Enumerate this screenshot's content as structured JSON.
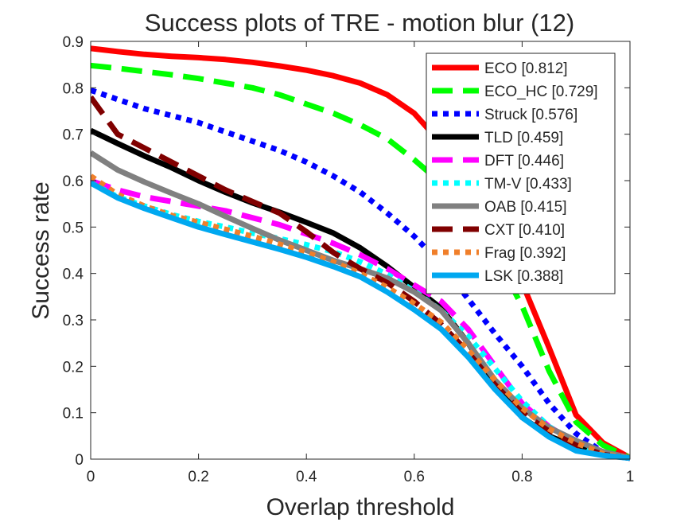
{
  "chart_data": {
    "type": "line",
    "title": "Success plots of TRE - motion blur (12)",
    "xlabel": "Overlap threshold",
    "ylabel": "Success rate",
    "xlim": [
      0,
      1
    ],
    "ylim": [
      0,
      0.9
    ],
    "xticks": [
      "0",
      "0.2",
      "0.4",
      "0.6",
      "0.8",
      "1"
    ],
    "yticks": [
      "0",
      "0.1",
      "0.2",
      "0.3",
      "0.4",
      "0.5",
      "0.6",
      "0.7",
      "0.8",
      "0.9"
    ],
    "grid": false,
    "legend_position": "top-right",
    "x": [
      0,
      0.05,
      0.1,
      0.15,
      0.2,
      0.25,
      0.3,
      0.35,
      0.4,
      0.45,
      0.5,
      0.55,
      0.6,
      0.65,
      0.7,
      0.75,
      0.8,
      0.85,
      0.9,
      0.95,
      1.0
    ],
    "series": [
      {
        "name": "ECO [0.812]",
        "color": "#ff0000",
        "dash": "solid",
        "values": [
          0.885,
          0.878,
          0.872,
          0.868,
          0.865,
          0.861,
          0.855,
          0.847,
          0.838,
          0.826,
          0.81,
          0.785,
          0.745,
          0.68,
          0.59,
          0.46,
          0.38,
          0.24,
          0.095,
          0.035,
          0.003
        ]
      },
      {
        "name": "ECO_HC [0.729]",
        "color": "#00ff00",
        "dash": "longdash",
        "values": [
          0.848,
          0.842,
          0.835,
          0.828,
          0.82,
          0.81,
          0.8,
          0.785,
          0.765,
          0.745,
          0.72,
          0.69,
          0.645,
          0.595,
          0.52,
          0.44,
          0.33,
          0.19,
          0.08,
          0.03,
          0.003
        ]
      },
      {
        "name": "Struck [0.576]",
        "color": "#0000ff",
        "dash": "dot",
        "values": [
          0.795,
          0.775,
          0.755,
          0.74,
          0.725,
          0.705,
          0.685,
          0.665,
          0.64,
          0.61,
          0.575,
          0.53,
          0.48,
          0.42,
          0.345,
          0.27,
          0.2,
          0.12,
          0.055,
          0.015,
          0.002
        ]
      },
      {
        "name": "TLD [0.459]",
        "color": "#000000",
        "dash": "solid",
        "values": [
          0.708,
          0.68,
          0.653,
          0.628,
          0.6,
          0.575,
          0.552,
          0.532,
          0.51,
          0.487,
          0.455,
          0.415,
          0.37,
          0.325,
          0.25,
          0.16,
          0.09,
          0.05,
          0.025,
          0.01,
          0.002
        ]
      },
      {
        "name": "DFT [0.446]",
        "color": "#ff00ff",
        "dash": "longdash",
        "values": [
          0.6,
          0.58,
          0.565,
          0.555,
          0.545,
          0.535,
          0.52,
          0.505,
          0.485,
          0.465,
          0.44,
          0.41,
          0.375,
          0.34,
          0.28,
          0.2,
          0.12,
          0.07,
          0.035,
          0.012,
          0.002
        ]
      },
      {
        "name": "TM-V [0.433]",
        "color": "#00ffff",
        "dash": "dot",
        "values": [
          0.595,
          0.565,
          0.545,
          0.527,
          0.512,
          0.5,
          0.487,
          0.475,
          0.462,
          0.447,
          0.425,
          0.398,
          0.362,
          0.32,
          0.265,
          0.195,
          0.125,
          0.07,
          0.035,
          0.012,
          0.002
        ]
      },
      {
        "name": "OAB [0.415]",
        "color": "#808080",
        "dash": "solid",
        "values": [
          0.66,
          0.623,
          0.597,
          0.573,
          0.55,
          0.523,
          0.497,
          0.472,
          0.45,
          0.428,
          0.41,
          0.39,
          0.36,
          0.32,
          0.25,
          0.17,
          0.11,
          0.068,
          0.04,
          0.016,
          0.003
        ]
      },
      {
        "name": "CXT [0.410]",
        "color": "#800000",
        "dash": "longdash",
        "values": [
          0.78,
          0.7,
          0.67,
          0.64,
          0.61,
          0.58,
          0.555,
          0.53,
          0.49,
          0.445,
          0.41,
          0.38,
          0.34,
          0.29,
          0.23,
          0.16,
          0.1,
          0.06,
          0.03,
          0.01,
          0.002
        ]
      },
      {
        "name": "Frag [0.392]",
        "color": "#f07f2a",
        "dash": "dot",
        "values": [
          0.61,
          0.57,
          0.545,
          0.525,
          0.51,
          0.495,
          0.48,
          0.463,
          0.445,
          0.425,
          0.4,
          0.37,
          0.335,
          0.295,
          0.235,
          0.17,
          0.11,
          0.065,
          0.035,
          0.012,
          0.002
        ]
      },
      {
        "name": "LSK [0.388]",
        "color": "#00a8f0",
        "dash": "solid",
        "values": [
          0.595,
          0.563,
          0.54,
          0.52,
          0.5,
          0.484,
          0.468,
          0.452,
          0.435,
          0.415,
          0.393,
          0.36,
          0.322,
          0.28,
          0.22,
          0.15,
          0.09,
          0.048,
          0.018,
          0.008,
          0.002
        ]
      }
    ]
  }
}
